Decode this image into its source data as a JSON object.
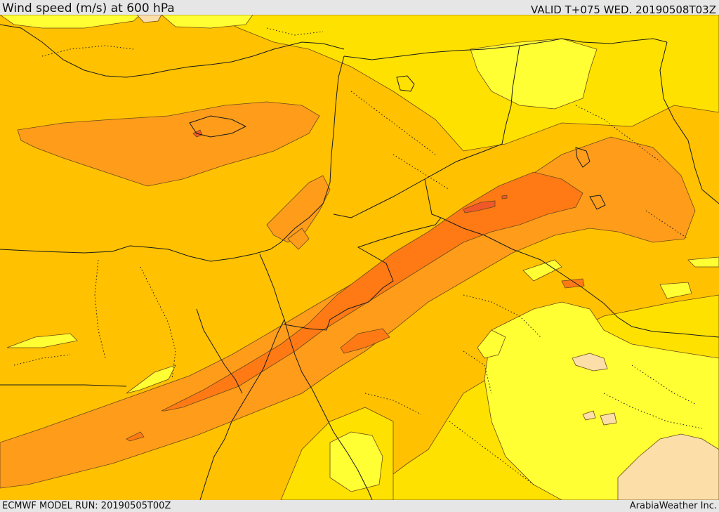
{
  "header": {
    "title": "Wind speed (m/s) at 600 hPa",
    "valid_time": "VALID T+075 WED. 20190508T03Z"
  },
  "footer": {
    "model_run": "ECMWF MODEL RUN: 20190505T00Z",
    "credit": "ArabiaWeather Inc."
  },
  "map": {
    "variable": "wind speed",
    "units": "m/s",
    "level_hpa": 600,
    "shading_colors": {
      "lightest": "#fcdfa8",
      "light_yellow": "#ffff00",
      "yellow": "#ffe100",
      "amber": "#ffc100",
      "orange": "#ff9c1a",
      "dark_orange": "#ff7a14",
      "red_orange": "#f0582a"
    },
    "features": [
      "coastlines",
      "country borders",
      "internal boundaries (dotted)",
      "wind speed contours"
    ]
  }
}
